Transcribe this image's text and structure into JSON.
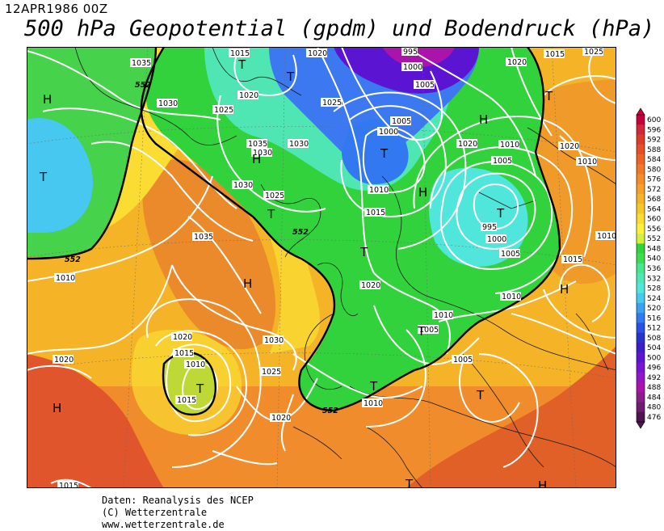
{
  "header": {
    "date": "12APR1986 00Z",
    "title": "500 hPa Geopotential (gpdm) und Bodendruck (hPa)"
  },
  "credits": {
    "line1": "Daten: Reanalysis des NCEP",
    "line2": "(C) Wetterzentrale",
    "line3": "www.wetterzentrale.de"
  },
  "legend": {
    "levels": [
      "600",
      "596",
      "592",
      "588",
      "584",
      "580",
      "576",
      "572",
      "568",
      "564",
      "560",
      "556",
      "552",
      "548",
      "540",
      "536",
      "532",
      "528",
      "524",
      "520",
      "516",
      "512",
      "508",
      "504",
      "500",
      "496",
      "492",
      "488",
      "484",
      "480",
      "476"
    ],
    "colors": [
      "#c8003c",
      "#d2283c",
      "#dc3c28",
      "#e65028",
      "#eb6423",
      "#f07828",
      "#f58c28",
      "#f5a028",
      "#f5b428",
      "#f5c828",
      "#fadc32",
      "#fff03c",
      "#d2f03c",
      "#32d23c",
      "#3cdc50",
      "#46e68c",
      "#50e6b4",
      "#50e6dc",
      "#46c8f0",
      "#3ca0f0",
      "#3278f0",
      "#2850e6",
      "#2832c8",
      "#3c1ec8",
      "#5a14d2",
      "#7814d2",
      "#9614c8",
      "#aa14aa",
      "#8c1e8c",
      "#6e1e6e",
      "#501450"
    ]
  },
  "map": {
    "contour_labels": [
      {
        "text": "1035"
      },
      {
        "text": "1030"
      },
      {
        "text": "1025"
      },
      {
        "text": "1020"
      },
      {
        "text": "1015"
      },
      {
        "text": "1025"
      },
      {
        "text": "1030"
      },
      {
        "text": "1035"
      },
      {
        "text": "1030"
      },
      {
        "text": "1025"
      },
      {
        "text": "1020"
      },
      {
        "text": "995"
      },
      {
        "text": "1000"
      },
      {
        "text": "1005"
      },
      {
        "text": "1000"
      },
      {
        "text": "1005"
      },
      {
        "text": "1010"
      },
      {
        "text": "1015"
      },
      {
        "text": "1020"
      },
      {
        "text": "1020"
      },
      {
        "text": "1015"
      },
      {
        "text": "1010"
      },
      {
        "text": "1005"
      },
      {
        "text": "1000"
      },
      {
        "text": "995"
      },
      {
        "text": "1005"
      },
      {
        "text": "1010"
      },
      {
        "text": "1015"
      },
      {
        "text": "1010"
      },
      {
        "text": "1010"
      },
      {
        "text": "1035"
      },
      {
        "text": "1010"
      },
      {
        "text": "1020"
      },
      {
        "text": "1030"
      },
      {
        "text": "1020"
      },
      {
        "text": "1015"
      },
      {
        "text": "1010"
      },
      {
        "text": "1025"
      },
      {
        "text": "1020"
      },
      {
        "text": "1010"
      },
      {
        "text": "1005"
      },
      {
        "text": "1010"
      },
      {
        "text": "1005"
      },
      {
        "text": "1020"
      },
      {
        "text": "1015"
      },
      {
        "text": "1020"
      },
      {
        "text": "1025"
      },
      {
        "text": "1015"
      },
      {
        "text": "1030"
      }
    ],
    "gp_labels": [
      {
        "text": "552"
      },
      {
        "text": "552"
      },
      {
        "text": "552"
      },
      {
        "text": "552"
      }
    ],
    "centers": [
      {
        "text": "T"
      },
      {
        "text": "T"
      },
      {
        "text": "T"
      },
      {
        "text": "T"
      },
      {
        "text": "T"
      },
      {
        "text": "T"
      },
      {
        "text": "T"
      },
      {
        "text": "T"
      },
      {
        "text": "T"
      },
      {
        "text": "T"
      },
      {
        "text": "T"
      },
      {
        "text": "T"
      },
      {
        "text": "T"
      },
      {
        "text": "H"
      },
      {
        "text": "H"
      },
      {
        "text": "H"
      },
      {
        "text": "H"
      },
      {
        "text": "H"
      },
      {
        "text": "H"
      },
      {
        "text": "H"
      },
      {
        "text": "H"
      }
    ]
  }
}
